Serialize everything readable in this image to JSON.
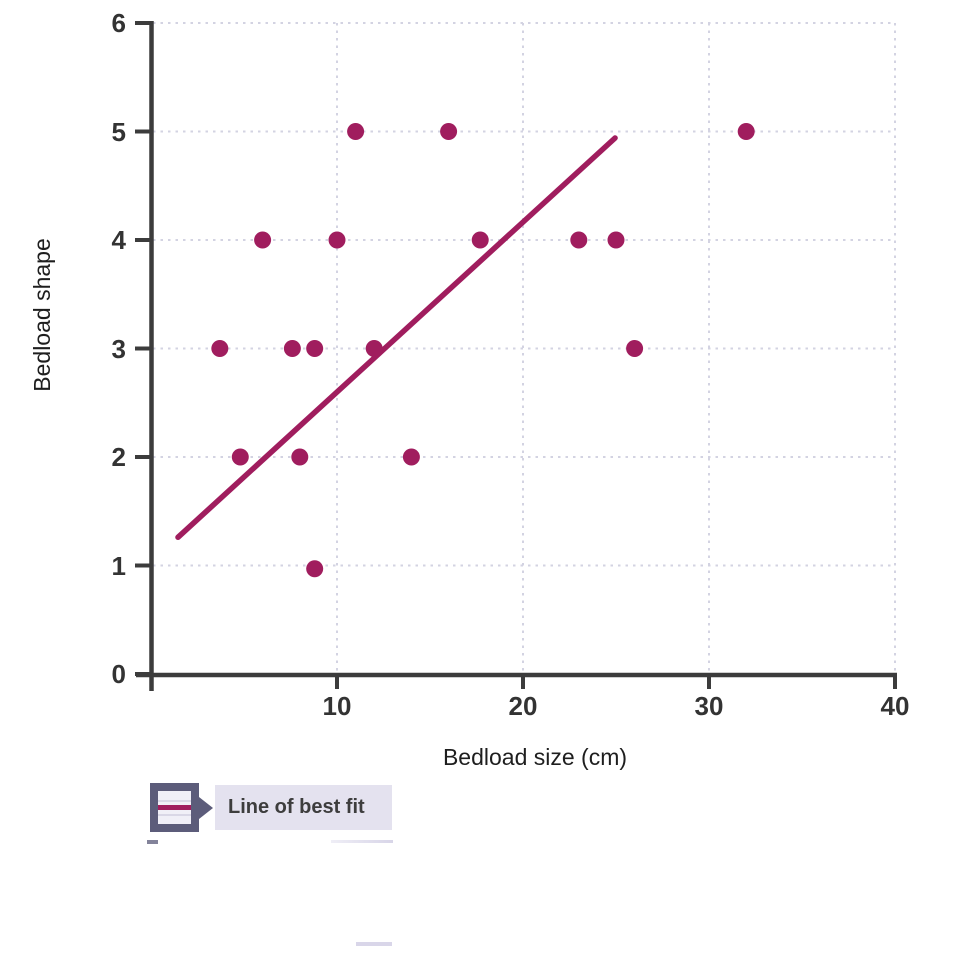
{
  "chart_data": {
    "type": "scatter",
    "title": "",
    "xlabel": "Bedload size (cm)",
    "ylabel": "Bedload shape",
    "xlim": [
      0,
      40
    ],
    "ylim": [
      0,
      6
    ],
    "x_ticks": [
      10,
      20,
      30,
      40
    ],
    "y_ticks": [
      0,
      1,
      2,
      3,
      4,
      5,
      6
    ],
    "grid": "dashed",
    "legend_position": "bottom-left",
    "points": [
      [
        11,
        5
      ],
      [
        16,
        5
      ],
      [
        32,
        5
      ],
      [
        6,
        4
      ],
      [
        10,
        4
      ],
      [
        17.7,
        4
      ],
      [
        23,
        4
      ],
      [
        25,
        4
      ],
      [
        3.7,
        3
      ],
      [
        7.6,
        3
      ],
      [
        8.8,
        3
      ],
      [
        12,
        3
      ],
      [
        26,
        3
      ],
      [
        4.8,
        2
      ],
      [
        8,
        2
      ],
      [
        14,
        2
      ],
      [
        8.8,
        0.97
      ]
    ],
    "best_fit_line": {
      "x1": 1.45,
      "y1": 1.26,
      "x2": 24.95,
      "y2": 4.94
    },
    "colors": {
      "point": "#a01d5e",
      "line": "#a01d5e",
      "grid": "#d3d3e2",
      "axis": "#3c3c3c",
      "tick_label": "#333333"
    }
  },
  "legend": {
    "label": "Line of best fit",
    "icon": "line-of-best-fit-icon",
    "frame_color": "#5c5c7a",
    "box_color": "#e4e2ef",
    "line_color": "#a01d5e"
  }
}
